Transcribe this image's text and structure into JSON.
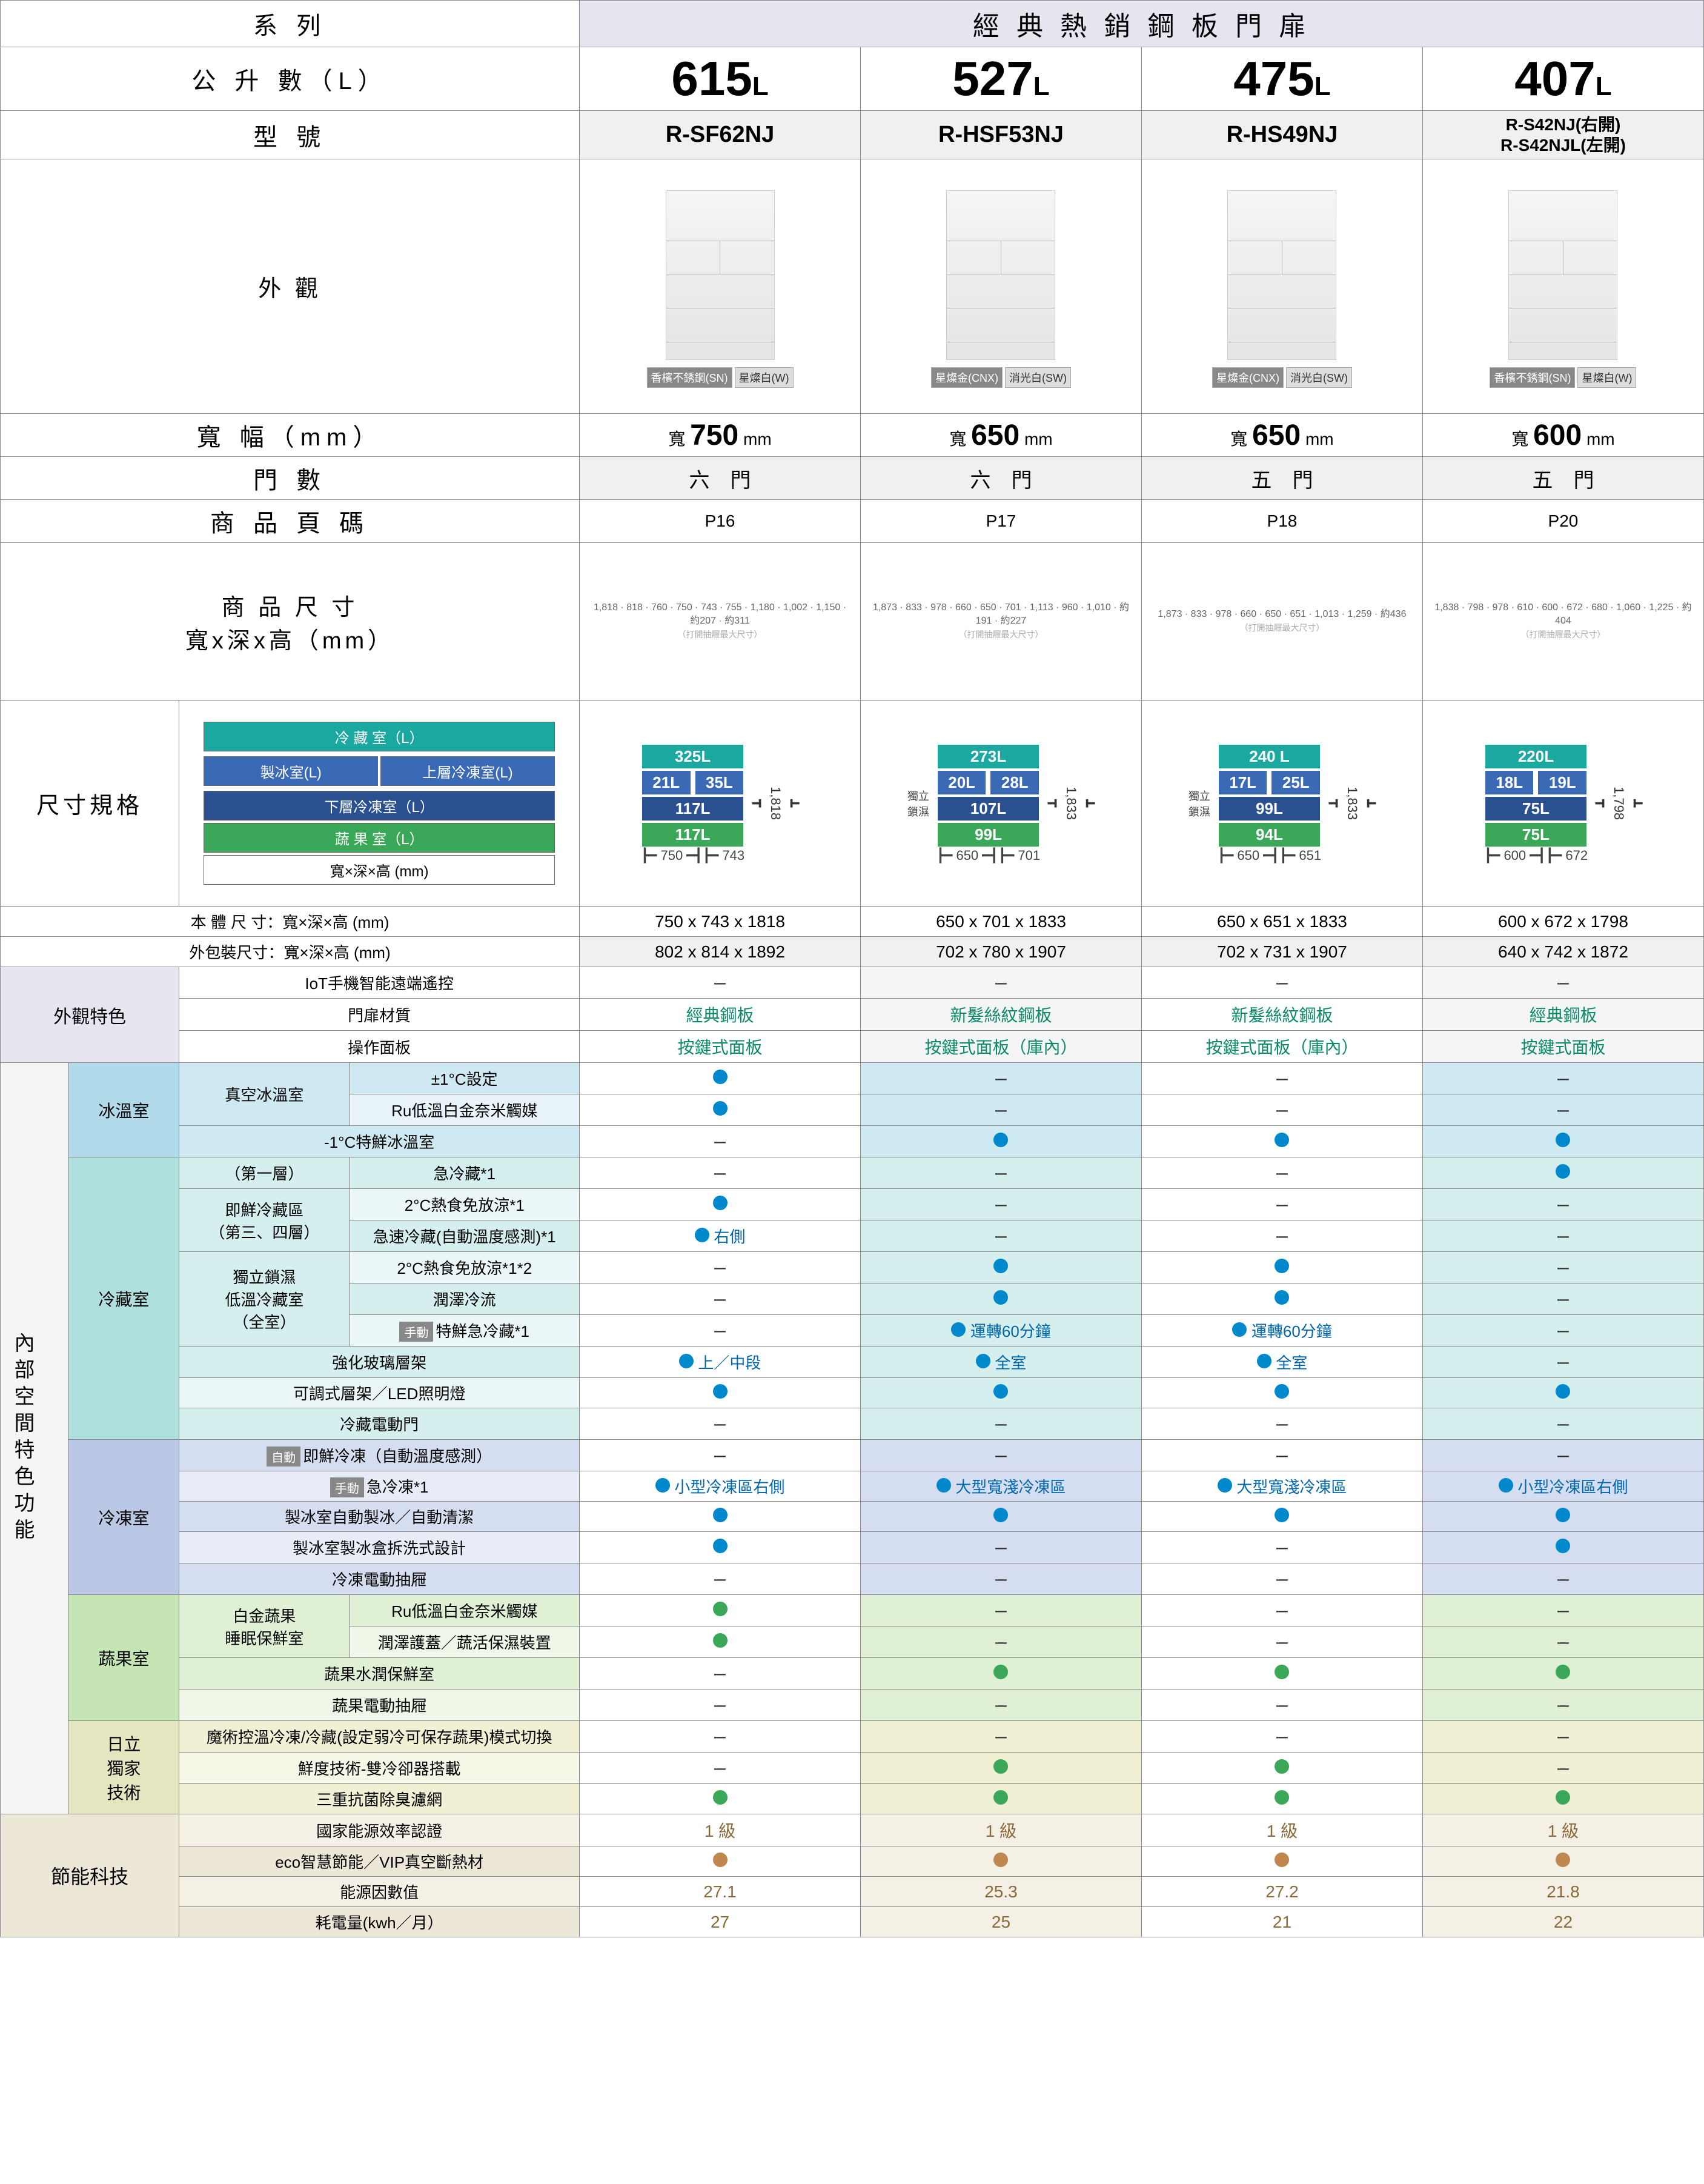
{
  "colors": {
    "border": "#888888",
    "header_bg": "#e8e5f0",
    "teal": "#1ba8a0",
    "mid_blue": "#3a6ab5",
    "dark_blue": "#2a5090",
    "green": "#3aa858",
    "section_ice_light": "#cfe9f2",
    "section_ice_dark": "#b0d9ea",
    "section_fridge_light": "#d5efef",
    "section_fridge_dark": "#b0e0de",
    "section_freezer_light": "#d5ddf0",
    "section_freezer_dark": "#bac7e5",
    "section_veg_light": "#e0f0d5",
    "section_veg_dark": "#c5e5b5",
    "section_tech_light": "#f0f0d5",
    "section_tech_dark": "#e5e5c0",
    "section_eco": "#ede7d8",
    "dot_blue": "#0088cc",
    "dot_green": "#3aa858",
    "dot_brown": "#c08850",
    "green_text": "#0a8a6a",
    "brown_text": "#8a6a3a",
    "alt_row": "#f0f0f0"
  },
  "header": {
    "series": "系 列",
    "series_name": "經 典 熱 銷 鋼 板 門 扉",
    "liters": "公 升 數（L）",
    "model": "型 號",
    "appearance": "外 觀",
    "width": "寬 幅（mm）",
    "doors": "門 數",
    "page": "商 品 頁 碼",
    "dimensions": "商 品 尺 寸\n寬x深x高（mm）",
    "spec": "尺寸規格",
    "body_size": "本 體 尺 寸：寬×深×高 (mm)",
    "pkg_size": "外包裝尺寸：寬×深×高 (mm)"
  },
  "legend": {
    "refrig": "冷 藏 室（L）",
    "ice": "製冰室(L)",
    "upper_freeze": "上層冷凍室(L)",
    "lower_freeze": "下層冷凍室（L）",
    "veg": "蔬 果 室（L）",
    "wdh": "寬×深×高 (mm)"
  },
  "models": [
    {
      "liters": "615",
      "model": "R-SF62NJ",
      "colors": [
        {
          "n": "香檳不銹鋼(SN)",
          "dark": true
        },
        {
          "n": "星燦白(W)",
          "dark": false
        }
      ],
      "width": "750",
      "doors": "六　門",
      "page": "P16",
      "dim_note": "1,818 / 818 / 760 / 750 / 743 / 755 / 1,180 / 1,002 / 1,150 / 約207 / 約311",
      "spec": {
        "refrig": "325L",
        "ice": "21L",
        "uf": "35L",
        "lf": "117L",
        "veg": "117L",
        "h": "1,818",
        "w": "750",
        "d": "743"
      },
      "body": "750 x 743 x 1818",
      "pkg": "802 x 814 x 1892"
    },
    {
      "liters": "527",
      "model": "R-HSF53NJ",
      "colors": [
        {
          "n": "星燦金(CNX)",
          "dark": true
        },
        {
          "n": "消光白(SW)",
          "dark": false
        }
      ],
      "width": "650",
      "doors": "六　門",
      "page": "P17",
      "dim_note": "1,873 / 833 / 978 / 660 / 650 / 701 / 1,113 / 960 / 1,010 / 約191 / 約227",
      "spec": {
        "refrig": "273L",
        "ice": "20L",
        "uf": "28L",
        "lf": "107L",
        "veg": "99L",
        "h": "1,833",
        "w": "650",
        "d": "701",
        "badge": "獨立\n鎖濕"
      },
      "body": "650 x 701 x 1833",
      "pkg": "702 x 780 x 1907"
    },
    {
      "liters": "475",
      "model": "R-HS49NJ",
      "colors": [
        {
          "n": "星燦金(CNX)",
          "dark": true
        },
        {
          "n": "消光白(SW)",
          "dark": false
        }
      ],
      "width": "650",
      "doors": "五　門",
      "page": "P18",
      "dim_note": "1,873 / 833 / 978 / 660 / 650 / 651 / 1,013 / 1,259 / 約436",
      "spec": {
        "refrig": "240 L",
        "ice": "17L",
        "uf": "25L",
        "lf": "99L",
        "veg": "94L",
        "h": "1,833",
        "w": "650",
        "d": "651",
        "badge": "獨立\n鎖濕"
      },
      "body": "650 x 651 x 1833",
      "pkg": "702 x 731 x 1907"
    },
    {
      "liters": "407",
      "model": "R-S42NJ(右開)\nR-S42NJL(左開)",
      "model_small": true,
      "colors": [
        {
          "n": "香檳不銹鋼(SN)",
          "dark": true
        },
        {
          "n": "星燦白(W)",
          "dark": false
        }
      ],
      "width": "600",
      "doors": "五　門",
      "page": "P20",
      "dim_note": "1,838 / 798 / 978 / 610 / 600 / 672 / 680 / 1,060 / 1,225 / 約404",
      "spec": {
        "refrig": "220L",
        "ice": "18L",
        "uf": "19L",
        "lf": "75L",
        "veg": "75L",
        "h": "1,798",
        "w": "600",
        "d": "672"
      },
      "body": "600 x 672 x 1798",
      "pkg": "640 x 742 x 1872"
    }
  ],
  "sections": [
    {
      "group": "外觀特色",
      "group_bg": "#e8e5f0",
      "rows": [
        {
          "label": "IoT手機智能遠端遙控",
          "cells": [
            "–",
            "–",
            "–",
            "–"
          ]
        },
        {
          "label": "門扉材質",
          "cells": [
            "經典鋼板|g",
            "新髮絲紋鋼板|g",
            "新髮絲紋鋼板|g",
            "經典鋼板|g"
          ]
        },
        {
          "label": "操作面板",
          "cells": [
            "按鍵式面板|g",
            "按鍵式面板（庫內）|g",
            "按鍵式面板（庫內）|g",
            "按鍵式面板|g"
          ]
        }
      ]
    }
  ],
  "feature_groups": {
    "master_label": "內部空間特色功能",
    "groups": [
      {
        "name": "冰溫室",
        "light": "#cfe9f2",
        "dark": "#b0d9ea",
        "alt": "#e8f4f9",
        "rows": [
          {
            "sub": "真空冰溫室",
            "sub_rs": 2,
            "label": "±1°C設定",
            "cells": [
              "●b",
              "–",
              "–",
              "–"
            ]
          },
          {
            "label": "Ru低溫白金奈米觸媒",
            "cells": [
              "●b",
              "–",
              "–",
              "–"
            ]
          },
          {
            "label": "-1°C特鮮冰溫室",
            "cs": 2,
            "cells": [
              "–",
              "●b",
              "●b",
              "●b"
            ]
          }
        ]
      },
      {
        "name": "冷藏室",
        "light": "#d5efef",
        "dark": "#b0e0de",
        "alt": "#eaf7f6",
        "rows": [
          {
            "sub": "（第一層）",
            "sub_rs": 1,
            "label": "急冷藏*1",
            "cells": [
              "–",
              "–",
              "–",
              "●b"
            ]
          },
          {
            "sub": "即鮮冷藏區\n（第三、四層）",
            "sub_rs": 2,
            "label": "2°C熱食免放涼*1",
            "cells": [
              "●b",
              "–",
              "–",
              "–"
            ]
          },
          {
            "label": "急速冷藏(自動溫度感測)*1",
            "cells": [
              "●b 右側",
              "–",
              "–",
              "–"
            ]
          },
          {
            "sub": "獨立鎖濕\n低溫冷藏室\n（全室）",
            "sub_rs": 3,
            "label": "2°C熱食免放涼*1*2",
            "cells": [
              "–",
              "●b",
              "●b",
              "–"
            ]
          },
          {
            "label": "潤澤冷流",
            "cells": [
              "–",
              "●b",
              "●b",
              "–"
            ]
          },
          {
            "label_badge": "手動",
            "label": "特鮮急冷藏*1",
            "cells": [
              "–",
              "●b 運轉60分鐘",
              "●b 運轉60分鐘",
              "–"
            ]
          },
          {
            "label": "強化玻璃層架",
            "cs": 2,
            "cells": [
              "●b 上／中段",
              "●b 全室",
              "●b 全室",
              "–"
            ]
          },
          {
            "label": "可調式層架／LED照明燈",
            "cs": 2,
            "cells": [
              "●b",
              "●b",
              "●b",
              "●b"
            ]
          },
          {
            "label": "冷藏電動門",
            "cs": 2,
            "cells": [
              "–",
              "–",
              "–",
              "–"
            ]
          }
        ]
      },
      {
        "name": "冷凍室",
        "light": "#d5ddf0",
        "dark": "#bac7e5",
        "alt": "#e8ecf6",
        "rows": [
          {
            "label_badge": "自動",
            "label": "即鮮冷凍（自動溫度感測）",
            "cs": 2,
            "cells": [
              "–",
              "–",
              "–",
              "–"
            ]
          },
          {
            "label_badge": "手動",
            "label": "急冷凍*1",
            "cs": 2,
            "cells": [
              "●b 小型冷凍區右側",
              "●b 大型寬淺冷凍區",
              "●b 大型寬淺冷凍區",
              "●b 小型冷凍區右側"
            ]
          },
          {
            "label": "製冰室自動製冰／自動清潔",
            "cs": 2,
            "cells": [
              "●b",
              "●b",
              "●b",
              "●b"
            ]
          },
          {
            "label": "製冰室製冰盒拆洗式設計",
            "cs": 2,
            "cells": [
              "●b",
              "–",
              "–",
              "●b"
            ]
          },
          {
            "label": "冷凍電動抽屜",
            "cs": 2,
            "cells": [
              "–",
              "–",
              "–",
              "–"
            ]
          }
        ]
      },
      {
        "name": "蔬果室",
        "light": "#e0f0d5",
        "dark": "#c5e5b5",
        "alt": "#eff7e8",
        "rows": [
          {
            "sub": "白金蔬果\n睡眠保鮮室",
            "sub_rs": 2,
            "label": "Ru低溫白金奈米觸媒",
            "cells": [
              "●g",
              "–",
              "–",
              "–"
            ]
          },
          {
            "label": "潤澤護蓋／蔬活保濕裝置",
            "cells": [
              "●g",
              "–",
              "–",
              "–"
            ]
          },
          {
            "label": "蔬果水潤保鮮室",
            "cs": 2,
            "cells": [
              "–",
              "●g",
              "●g",
              "●g"
            ]
          },
          {
            "label": "蔬果電動抽屜",
            "cs": 2,
            "cells": [
              "–",
              "–",
              "–",
              "–"
            ]
          }
        ]
      },
      {
        "name": "日立\n獨家\n技術",
        "light": "#f0f0d5",
        "dark": "#e5e5c0",
        "alt": "#f7f7e8",
        "rows": [
          {
            "label": "魔術控溫冷凍/冷藏(設定弱冷可保存蔬果)模式切換",
            "cs": 2,
            "small": true,
            "cells": [
              "–",
              "–",
              "–",
              "–"
            ]
          },
          {
            "label": "鮮度技術-雙冷卻器搭載",
            "cs": 2,
            "cells": [
              "–",
              "●g",
              "●g",
              "–"
            ]
          },
          {
            "label": "三重抗菌除臭濾網",
            "cs": 2,
            "cells": [
              "●g",
              "●g",
              "●g",
              "●g"
            ]
          }
        ]
      }
    ]
  },
  "eco": {
    "name": "節能科技",
    "bg": "#ede7d8",
    "alt": "#f5f0e5",
    "rows": [
      {
        "label": "國家能源效率認證",
        "cells": [
          "1 級|br",
          "1 級|br",
          "1 級|br",
          "1 級|br"
        ]
      },
      {
        "label": "eco智慧節能／VIP真空斷熱材",
        "cells": [
          "●br",
          "●br",
          "●br",
          "●br"
        ]
      },
      {
        "label": "能源因數值",
        "cells": [
          "27.1|br",
          "25.3|br",
          "27.2|br",
          "21.8|br"
        ]
      },
      {
        "label": "耗電量(kwh／月）",
        "cells": [
          "27|br",
          "25|br",
          "21|br",
          "22|br"
        ]
      }
    ]
  }
}
